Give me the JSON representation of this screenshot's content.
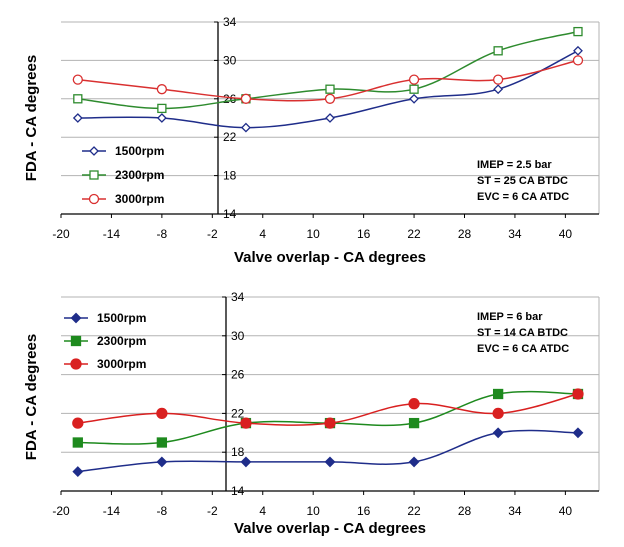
{
  "chart_data": [
    {
      "type": "line",
      "xlabel": "Valve overlap  -  CA degrees",
      "ylabel": "FDA  -  CA degrees",
      "xlim": [
        -20,
        44
      ],
      "ylim": [
        14,
        34
      ],
      "xticks": [
        -20,
        -14,
        -8,
        -2,
        4,
        10,
        16,
        22,
        28,
        34,
        40
      ],
      "yticks": [
        14,
        18,
        22,
        26,
        30,
        34
      ],
      "xtick_labels": [
        "-20",
        "-14",
        "-8",
        "-2",
        "4",
        "10",
        "16",
        "22",
        "28",
        "34",
        "40"
      ],
      "ytick_labels": [
        "14",
        "18",
        "22",
        "26",
        "30",
        "34"
      ],
      "grid": "horizontal",
      "annotation": [
        "IMEP = 2.5 bar",
        "ST = 25 CA BTDC",
        "EVC = 6 CA ATDC"
      ],
      "x": [
        -18,
        -8,
        2,
        12,
        22,
        32,
        41.5
      ],
      "series": [
        {
          "name": "1500rpm",
          "values": [
            24,
            24,
            23,
            24,
            26,
            27,
            31
          ],
          "color": "#1f2d8a",
          "marker": "diamond-open"
        },
        {
          "name": "2300rpm",
          "values": [
            26,
            25,
            26,
            27,
            27,
            31,
            33
          ],
          "color": "#2e8b2e",
          "marker": "square-open"
        },
        {
          "name": "3000rpm",
          "values": [
            28,
            27,
            26,
            26,
            28,
            28,
            30
          ],
          "color": "#d93030",
          "marker": "circle-open"
        }
      ]
    },
    {
      "type": "line",
      "xlabel": "Valve overlap  -  CA degrees",
      "ylabel": "FDA  -  CA degrees",
      "xlim": [
        -20,
        44
      ],
      "ylim": [
        14,
        34
      ],
      "xticks": [
        -20,
        -14,
        -8,
        -2,
        4,
        10,
        16,
        22,
        28,
        34,
        40
      ],
      "yticks": [
        14,
        18,
        22,
        26,
        30,
        34
      ],
      "xtick_labels": [
        "-20",
        "-14",
        "-8",
        "-2",
        "4",
        "10",
        "16",
        "22",
        "28",
        "34",
        "40"
      ],
      "ytick_labels": [
        "14",
        "18",
        "22",
        "26",
        "30",
        "34"
      ],
      "grid": "horizontal",
      "annotation": [
        "IMEP = 6 bar",
        "ST = 14 CA BTDC",
        "EVC = 6 CA ATDC"
      ],
      "x": [
        -18,
        -8,
        2,
        12,
        22,
        32,
        41.5
      ],
      "series": [
        {
          "name": "1500rpm",
          "values": [
            16,
            17,
            17,
            17,
            17,
            20,
            20
          ],
          "color": "#1f2d8a",
          "marker": "diamond-filled"
        },
        {
          "name": "2300rpm",
          "values": [
            19,
            19,
            21,
            21,
            21,
            24,
            24
          ],
          "color": "#1e8a1e",
          "marker": "square-filled"
        },
        {
          "name": "3000rpm",
          "values": [
            21,
            22,
            21,
            21,
            23,
            22,
            24
          ],
          "color": "#d92020",
          "marker": "circle-filled"
        }
      ]
    }
  ]
}
